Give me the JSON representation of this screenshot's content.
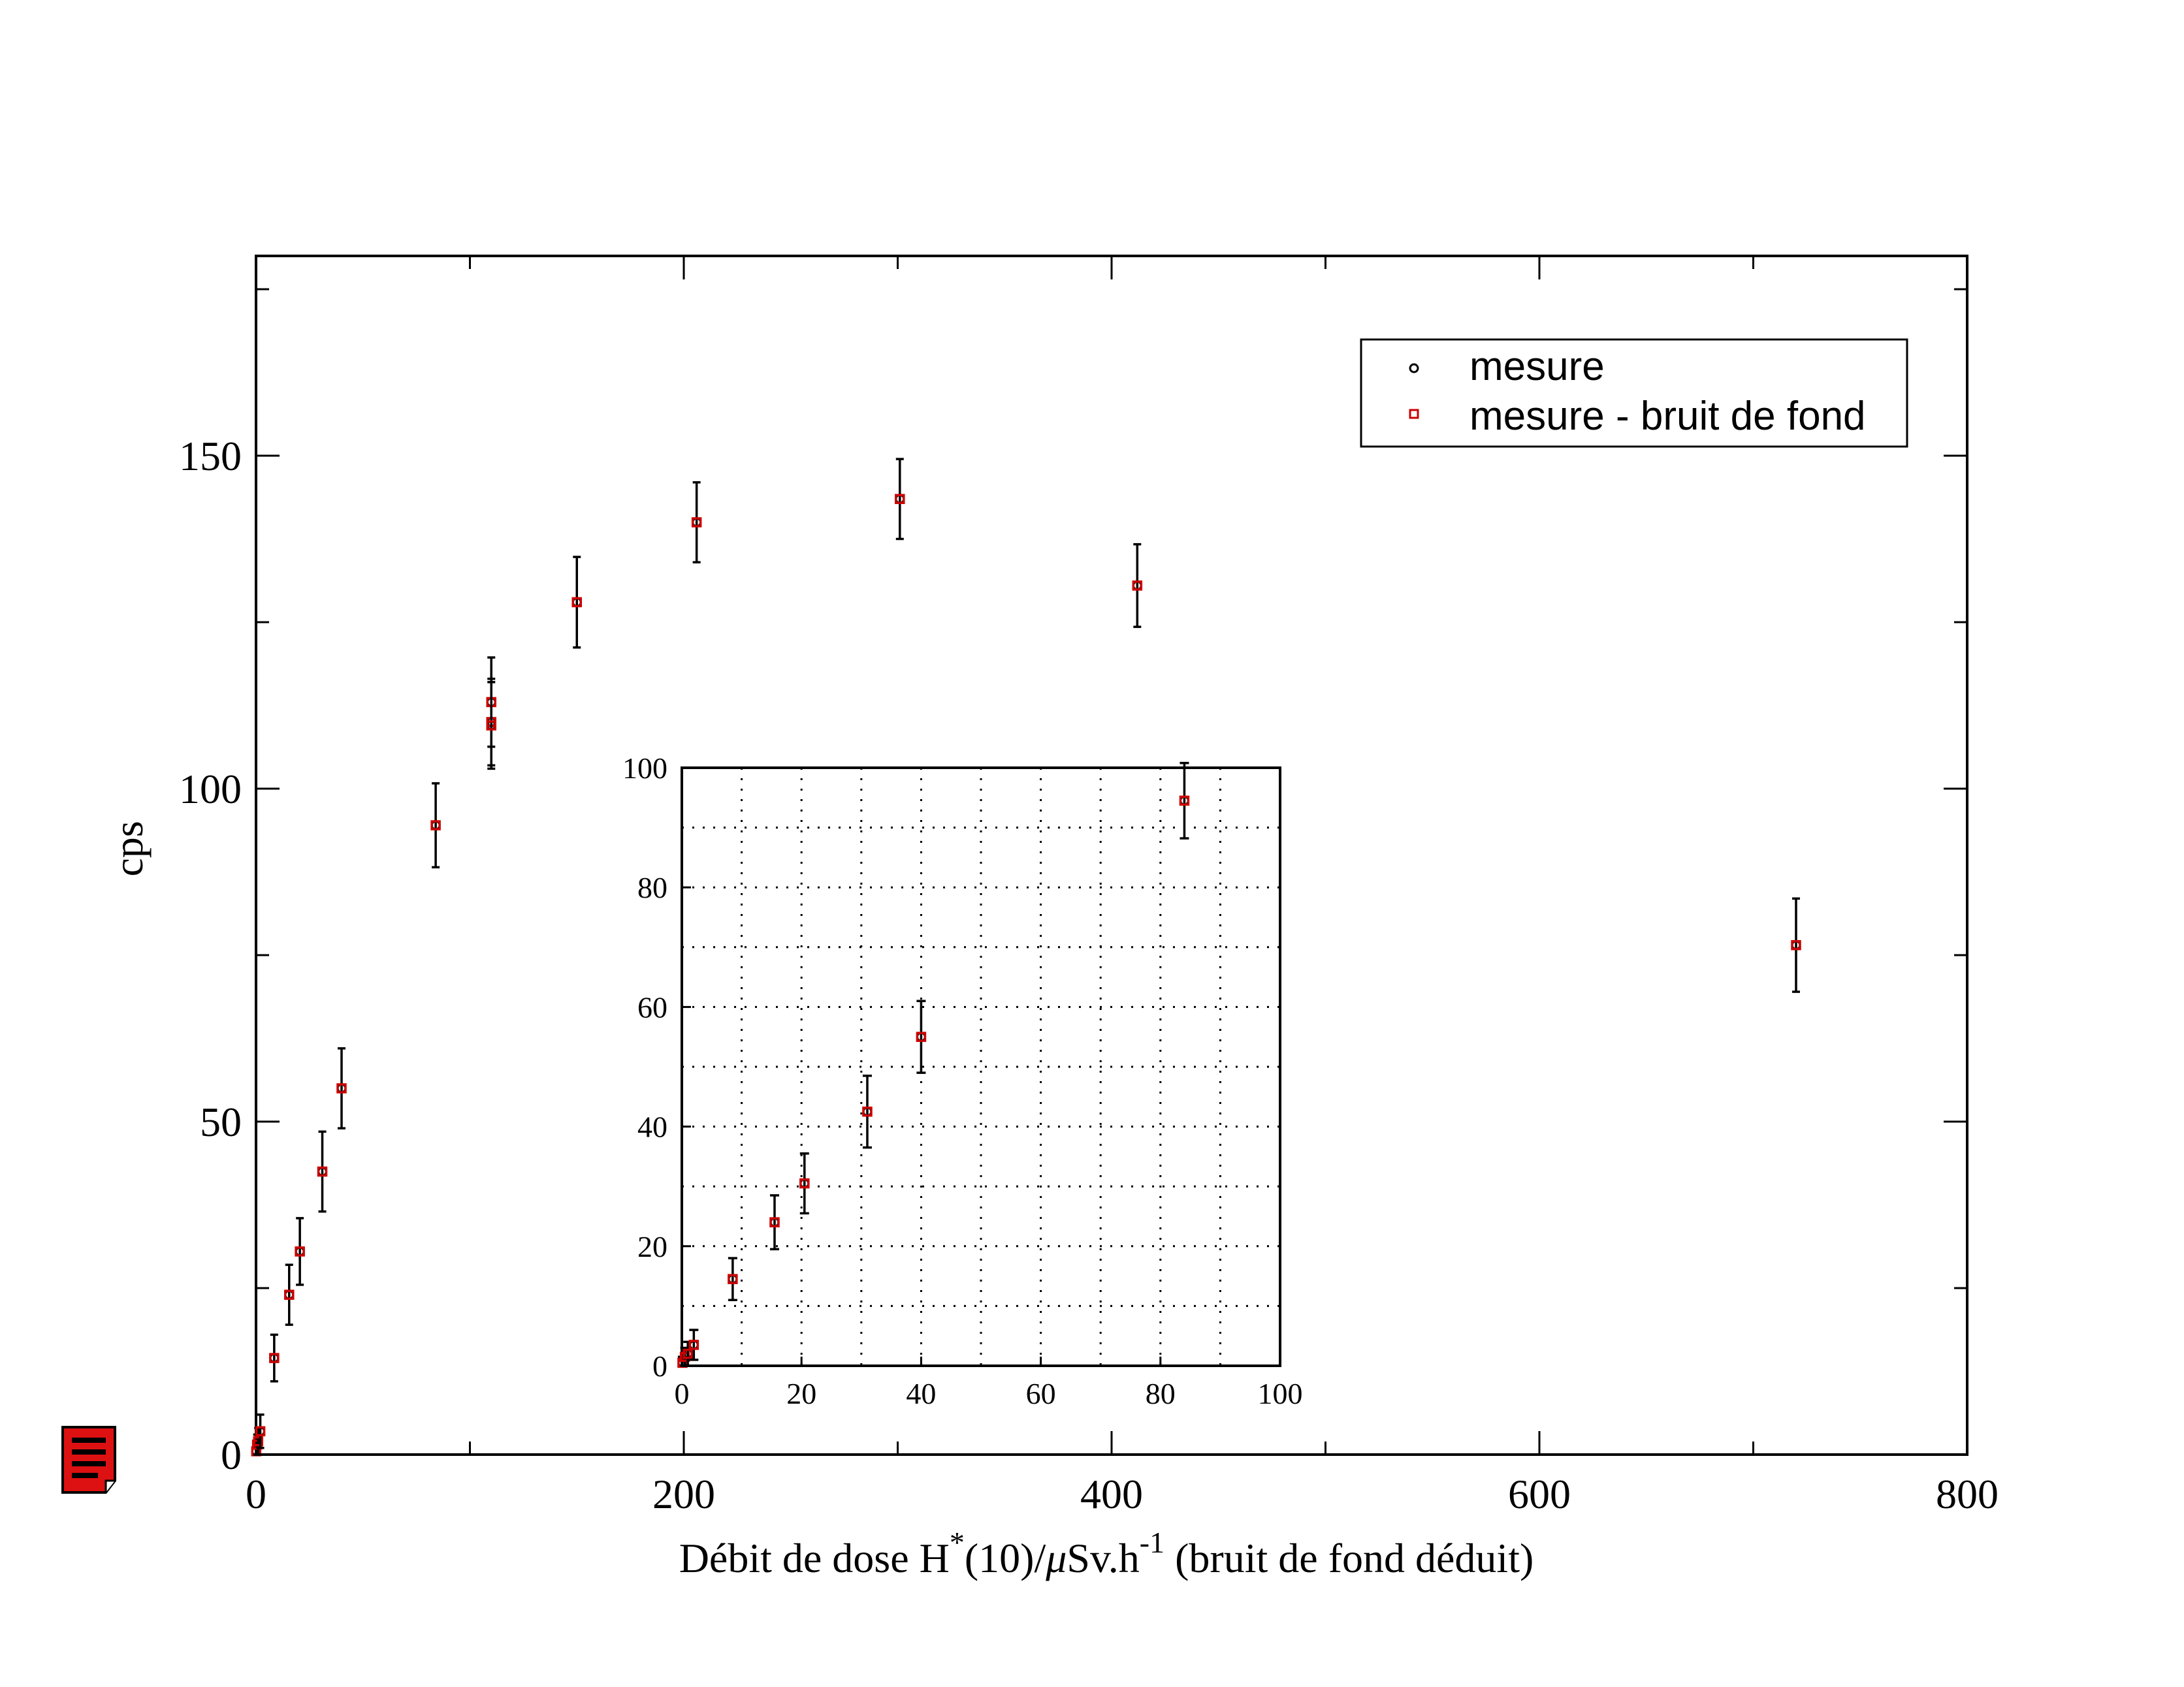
{
  "chart_data": [
    {
      "type": "scatter",
      "title": "",
      "xlabel": "Débit de dose H*(10)/μSv.h-1 (bruit de fond déduit)",
      "xlabel_parts": {
        "a": "Débit de dose H",
        "sup1": "*",
        "b": "(10)/",
        "mu": "μ",
        "c": "Sv.h",
        "sup2": "-1",
        "d": " (bruit de fond déduit)"
      },
      "ylabel": "cps",
      "xlim": [
        0,
        800
      ],
      "ylim": [
        0,
        180
      ],
      "xticks": [
        0,
        200,
        400,
        600,
        800
      ],
      "yticks": [
        0,
        50,
        100,
        150
      ],
      "grid": false,
      "legend_placement": "top-right",
      "series": [
        {
          "name": "mesure",
          "marker": "circle",
          "color": "#000000",
          "points": [
            {
              "x": 0.1,
              "y": 0.5,
              "err": 1.0
            },
            {
              "x": 0.5,
              "y": 1.5,
              "err": 1.5
            },
            {
              "x": 1.0,
              "y": 2.0,
              "err": 2.0
            },
            {
              "x": 2.0,
              "y": 3.5,
              "err": 2.5
            },
            {
              "x": 8.5,
              "y": 14.5,
              "err": 3.5
            },
            {
              "x": 15.5,
              "y": 24.0,
              "err": 4.5
            },
            {
              "x": 20.5,
              "y": 30.5,
              "err": 5.0
            },
            {
              "x": 31.0,
              "y": 42.5,
              "err": 6.0
            },
            {
              "x": 40.0,
              "y": 55.0,
              "err": 6.0
            },
            {
              "x": 84.0,
              "y": 94.5,
              "err": 6.3
            },
            {
              "x": 110.0,
              "y": 113.0,
              "err": 6.7
            },
            {
              "x": 110.0,
              "y": 110.0,
              "err": 6.5
            },
            {
              "x": 110.0,
              "y": 109.5,
              "err": 6.5
            },
            {
              "x": 150.0,
              "y": 128.0,
              "err": 6.8
            },
            {
              "x": 206.0,
              "y": 140.0,
              "err": 6.0
            },
            {
              "x": 301.0,
              "y": 143.5,
              "err": 6.0
            },
            {
              "x": 412.0,
              "y": 130.5,
              "err": 6.2
            },
            {
              "x": 720.0,
              "y": 76.5,
              "err": 7.0
            }
          ]
        },
        {
          "name": "mesure - bruit de fond",
          "marker": "square",
          "color": "#cc0000",
          "points": [
            {
              "x": 0.1,
              "y": 0.5
            },
            {
              "x": 0.5,
              "y": 1.5
            },
            {
              "x": 1.0,
              "y": 2.0
            },
            {
              "x": 2.0,
              "y": 3.5
            },
            {
              "x": 8.5,
              "y": 14.5
            },
            {
              "x": 15.5,
              "y": 24.0
            },
            {
              "x": 20.5,
              "y": 30.5
            },
            {
              "x": 31.0,
              "y": 42.5
            },
            {
              "x": 40.0,
              "y": 55.0
            },
            {
              "x": 84.0,
              "y": 94.5
            },
            {
              "x": 110.0,
              "y": 113.0
            },
            {
              "x": 110.0,
              "y": 110.0
            },
            {
              "x": 110.0,
              "y": 109.5
            },
            {
              "x": 150.0,
              "y": 128.0
            },
            {
              "x": 206.0,
              "y": 140.0
            },
            {
              "x": 301.0,
              "y": 143.5
            },
            {
              "x": 412.0,
              "y": 130.5
            },
            {
              "x": 720.0,
              "y": 76.5
            }
          ]
        }
      ]
    },
    {
      "type": "scatter",
      "title": "",
      "xlabel": "",
      "ylabel": "",
      "xlim": [
        0,
        100
      ],
      "ylim": [
        0,
        100
      ],
      "xticks": [
        0,
        20,
        40,
        60,
        80,
        100
      ],
      "yticks": [
        0,
        20,
        40,
        60,
        80,
        100
      ],
      "grid": true,
      "grid_step": 10,
      "series_ref": "same data as main plot, clipped to view"
    }
  ]
}
